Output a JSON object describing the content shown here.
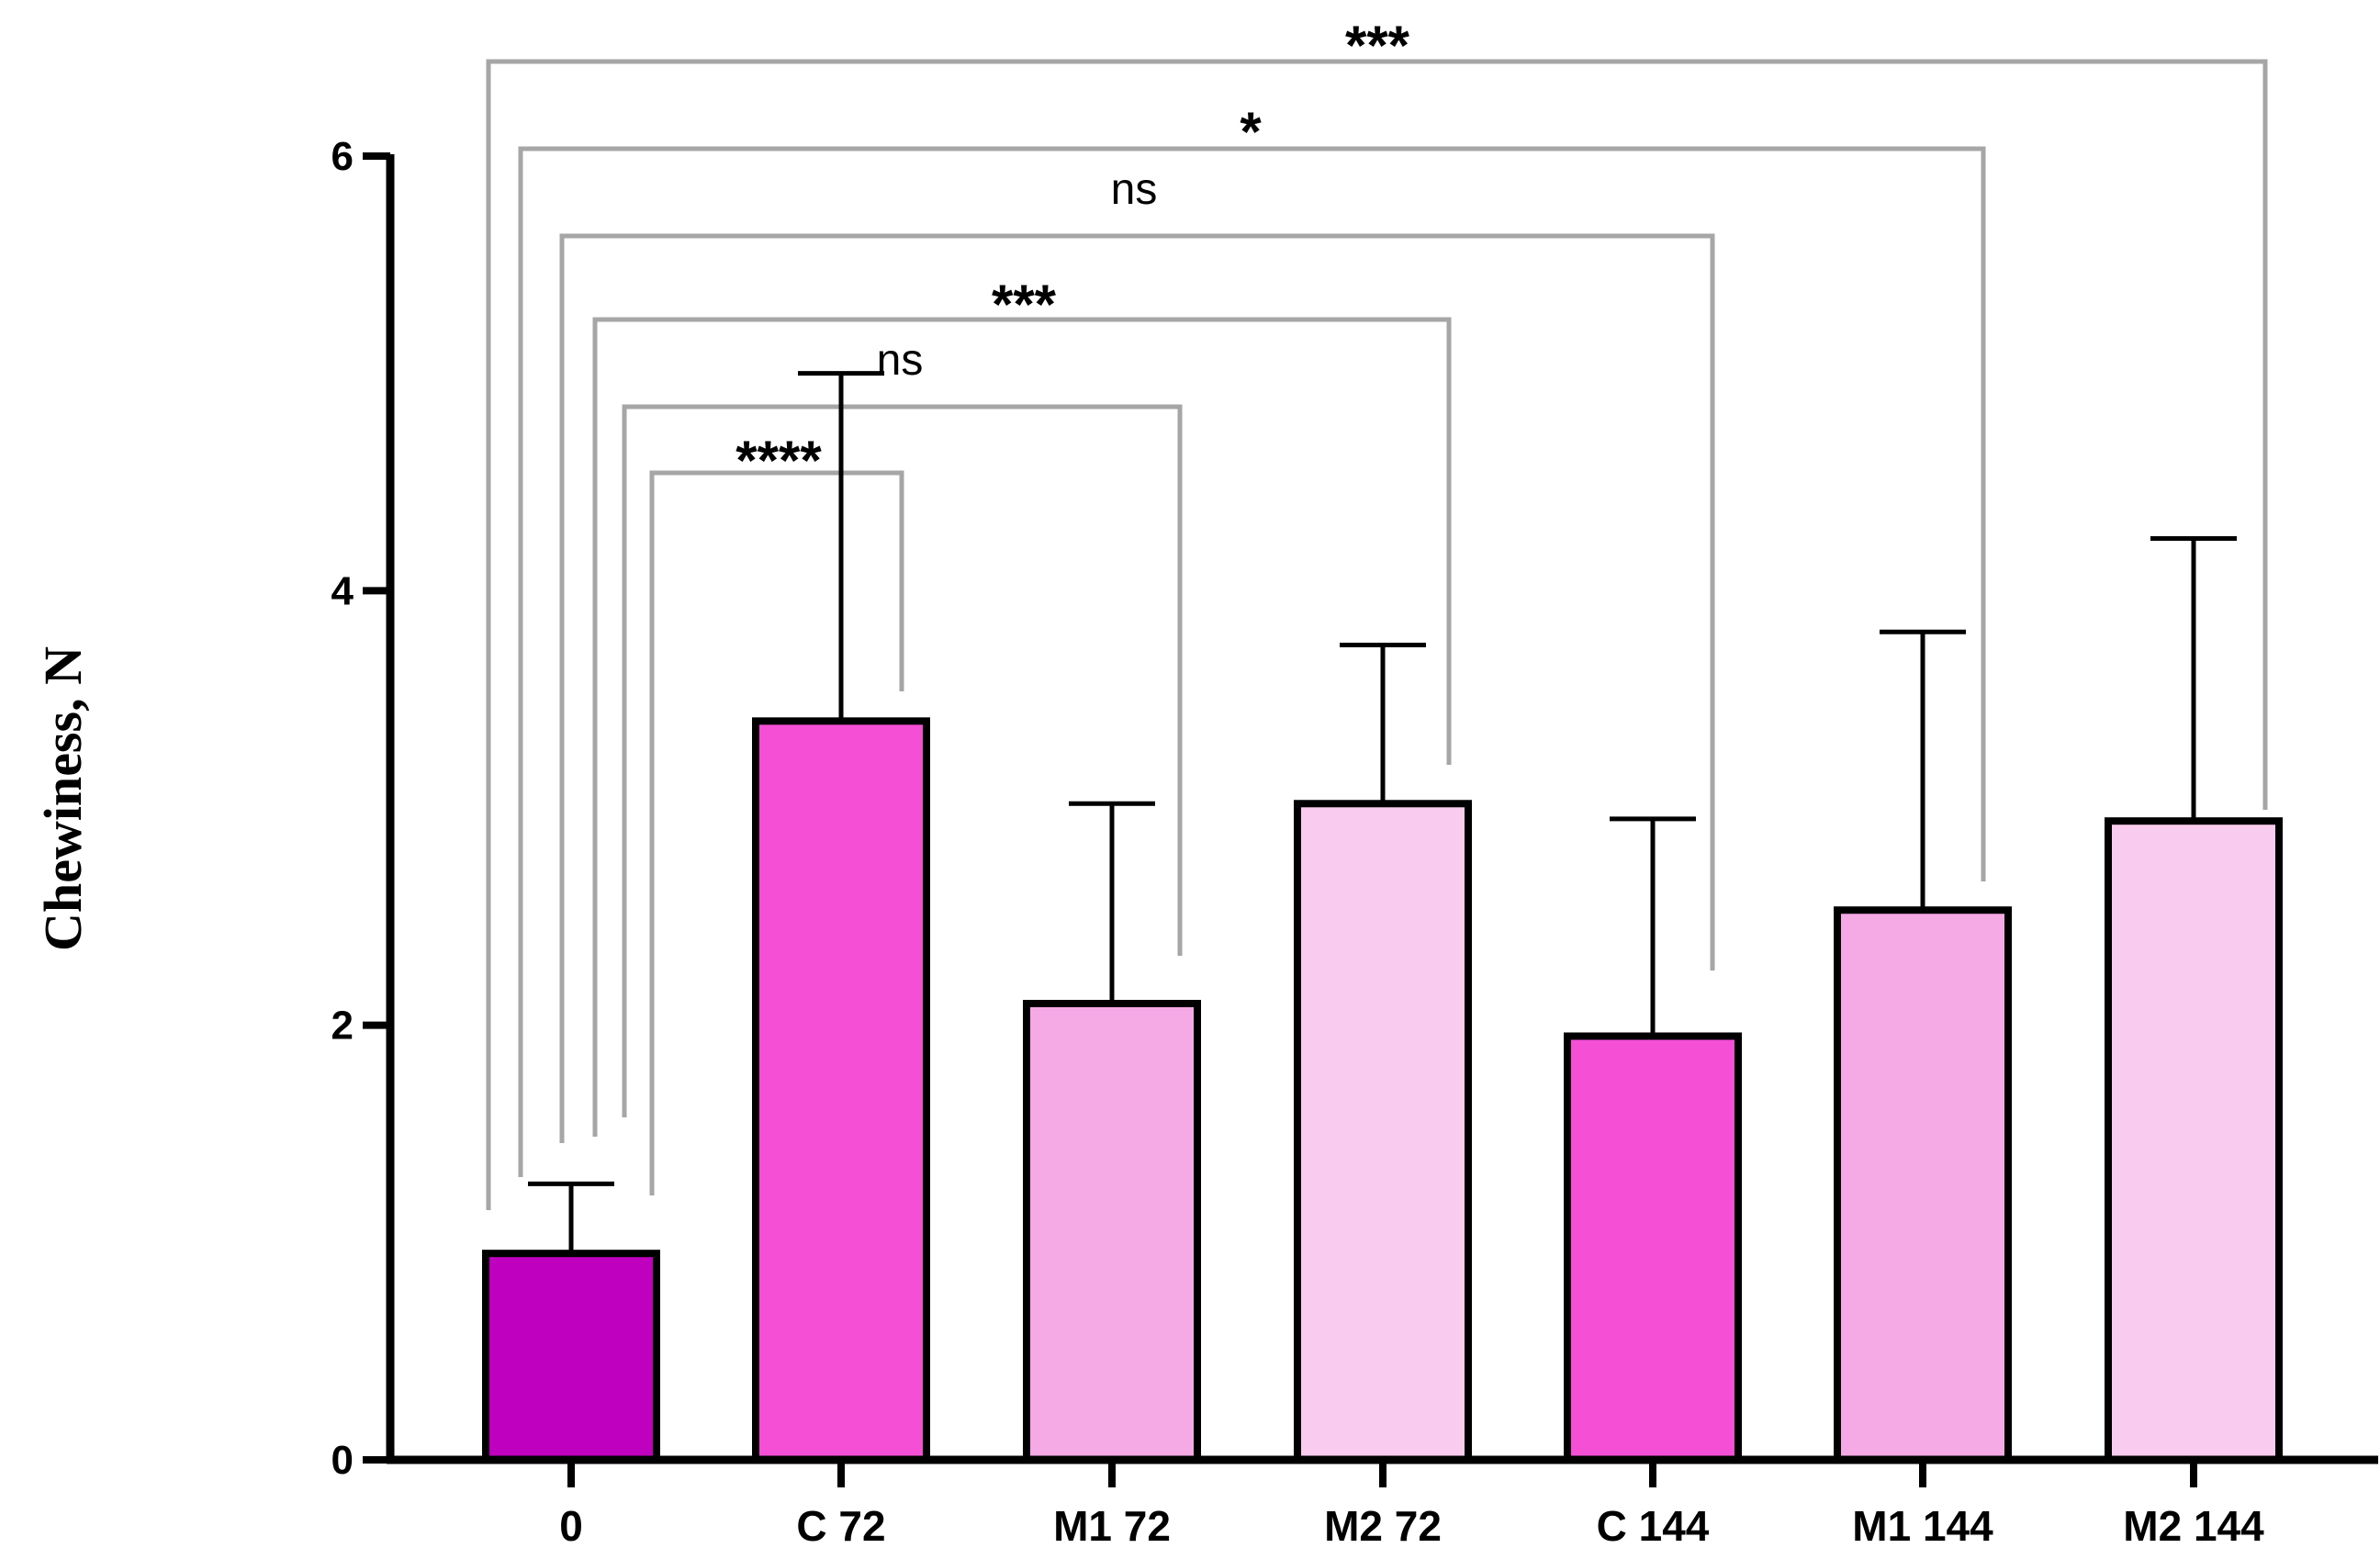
{
  "chart_data": {
    "type": "bar",
    "title": "",
    "xlabel": "",
    "ylabel": "Chewiness, N",
    "ylim": [
      0,
      6
    ],
    "yticks": [
      0,
      2,
      4,
      6
    ],
    "grid": false,
    "categories": [
      "0",
      "C 72",
      "M1 72",
      "M2 72",
      "C 144",
      "M1 144",
      "M2 144"
    ],
    "series": [
      {
        "name": "Chewiness",
        "values": [
          0.95,
          3.4,
          2.1,
          3.02,
          1.95,
          2.53,
          2.94
        ],
        "errors": [
          0.32,
          1.6,
          0.92,
          0.73,
          1.0,
          1.28,
          1.3
        ],
        "colors": [
          "#bf00bf",
          "#f54fd6",
          "#f5a9e5",
          "#f9cbee",
          "#f54fd6",
          "#f5a9e5",
          "#f9cbee"
        ]
      }
    ],
    "comparisons": [
      {
        "from": "0",
        "to": "C 72",
        "label": "****"
      },
      {
        "from": "0",
        "to": "M1 72",
        "label": "ns"
      },
      {
        "from": "0",
        "to": "M2 72",
        "label": "***"
      },
      {
        "from": "0",
        "to": "C 144",
        "label": "ns"
      },
      {
        "from": "0",
        "to": "M1 144",
        "label": "*"
      },
      {
        "from": "0",
        "to": "M2 144",
        "label": "***"
      }
    ],
    "colors": {
      "axis": "#000000",
      "bracket": "#a6a6a6",
      "bar_edge": "#000000"
    }
  }
}
